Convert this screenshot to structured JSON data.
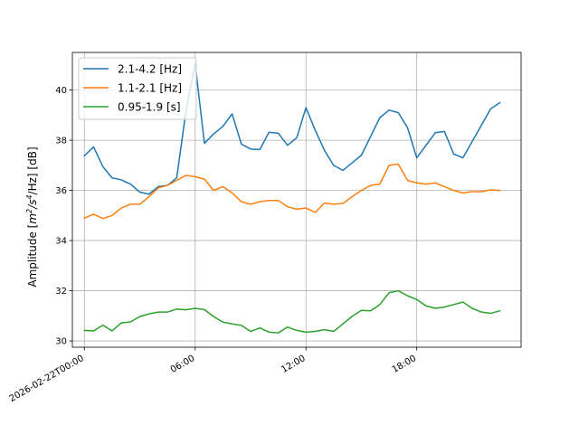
{
  "chart_data": {
    "type": "line",
    "title": "",
    "xlabel": "",
    "ylabel": "Amplitude [m²/s⁴/Hz] [dB]",
    "ylabel_parts": {
      "prefix": "Amplitude [",
      "m": "m",
      "exp2": "2",
      "mid": "/s",
      "exp4": "4",
      "tail": "/Hz] [dB]"
    },
    "x_tick_labels": [
      "2026-02-22T00:00",
      "06:00",
      "12:00",
      "18:00"
    ],
    "x_ticks_hours": [
      0,
      6,
      12,
      18
    ],
    "y_ticks": [
      30,
      32,
      34,
      36,
      38,
      40
    ],
    "xlim_hours": [
      -0.65,
      23.65
    ],
    "ylim": [
      29.75,
      41.5
    ],
    "grid": true,
    "legend_position": "upper-left",
    "x": [
      0,
      0.5,
      1,
      1.5,
      2,
      2.5,
      3,
      3.5,
      4,
      4.5,
      5,
      5.5,
      6,
      6.5,
      7,
      7.5,
      8,
      8.5,
      9,
      9.5,
      10,
      10.5,
      11,
      11.5,
      12,
      12.5,
      13,
      13.5,
      14,
      14.5,
      15,
      15.5,
      16,
      16.5,
      17,
      17.5,
      18,
      18.5,
      19,
      19.5,
      20,
      20.5,
      21,
      21.5,
      22,
      22.5,
      23
    ],
    "series": [
      {
        "name": "2.1-4.2 [Hz]",
        "color": "#1f77b4",
        "values": [
          37.38,
          37.73,
          36.95,
          36.5,
          36.42,
          36.25,
          35.93,
          35.85,
          36.15,
          36.2,
          36.5,
          39.15,
          41.05,
          37.88,
          38.25,
          38.55,
          39.05,
          37.85,
          37.65,
          37.63,
          38.32,
          38.28,
          37.8,
          38.1,
          39.3,
          38.4,
          37.6,
          37.0,
          36.8,
          37.1,
          37.4,
          38.15,
          38.9,
          39.2,
          39.1,
          38.5,
          37.3,
          37.8,
          38.3,
          38.35,
          37.45,
          37.3,
          37.95,
          38.6,
          39.25,
          39.5,
          null
        ],
        "values_note": ""
      },
      {
        "name": "1.1-2.1 [Hz]",
        "color": "#ff7f0e",
        "values": [
          34.9,
          35.05,
          34.88,
          35.0,
          35.3,
          35.45,
          35.45,
          35.75,
          36.1,
          36.2,
          36.4,
          36.6,
          36.55,
          36.45,
          36.0,
          36.15,
          35.9,
          35.55,
          35.45,
          35.55,
          35.6,
          35.6,
          35.35,
          35.25,
          35.3,
          35.12,
          35.5,
          35.45,
          35.48,
          35.75,
          36.0,
          36.2,
          36.25,
          37.0,
          37.05,
          36.4,
          36.3,
          36.25,
          36.3,
          36.15,
          36.0,
          35.9,
          35.95,
          35.95,
          36.02,
          36.0,
          null
        ]
      },
      {
        "name": "0.95-1.9 [s]",
        "color": "#2ca02c",
        "values": [
          30.42,
          30.4,
          30.63,
          30.4,
          30.72,
          30.76,
          30.97,
          31.08,
          31.15,
          31.15,
          31.27,
          31.24,
          31.3,
          31.25,
          30.97,
          30.75,
          30.68,
          30.62,
          30.38,
          30.52,
          30.35,
          30.32,
          30.55,
          30.42,
          30.35,
          30.38,
          30.45,
          30.38,
          30.68,
          30.98,
          31.22,
          31.2,
          31.45,
          31.92,
          32.0,
          31.8,
          31.65,
          31.4,
          31.3,
          31.35,
          31.45,
          31.55,
          31.3,
          31.15,
          31.1,
          31.2,
          null
        ]
      }
    ]
  }
}
